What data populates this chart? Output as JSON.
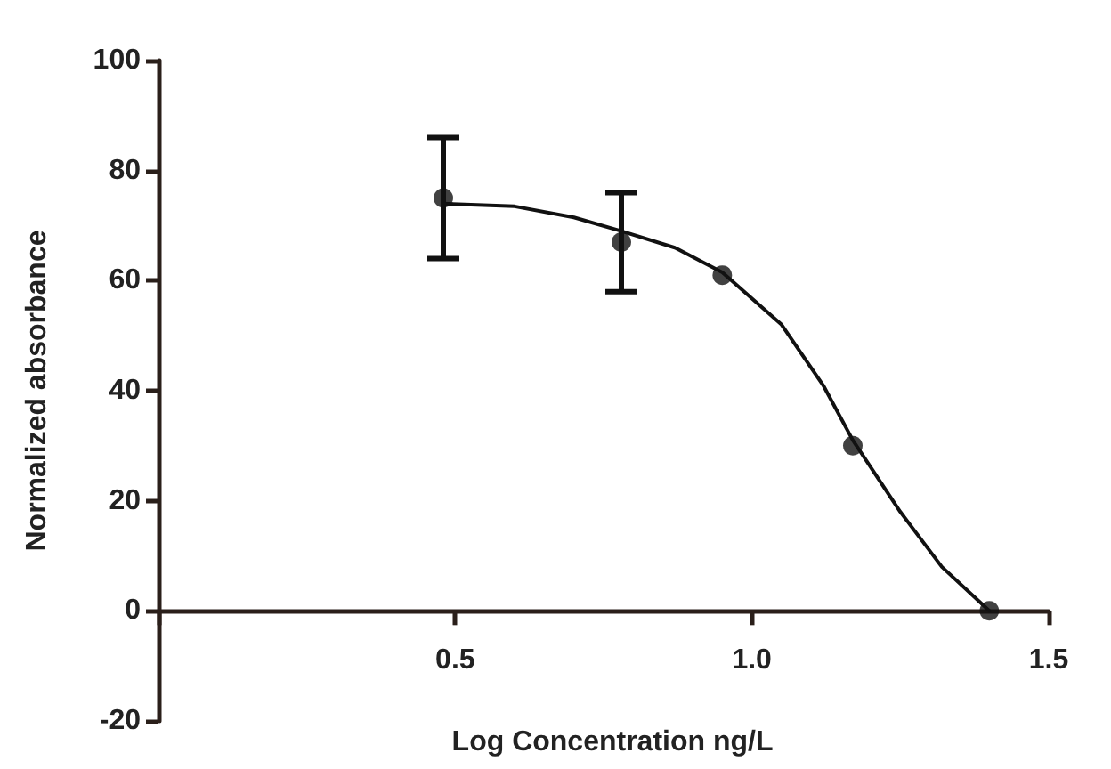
{
  "chart_data": {
    "type": "scatter",
    "xlabel": "Log Concentration ng/L",
    "ylabel": "Normalized absorbance",
    "xlim": [
      0,
      1.5
    ],
    "xticks": [
      {
        "value": 0.5,
        "label": "0.5"
      },
      {
        "value": 1,
        "label": "1.0"
      },
      {
        "value": 1.5,
        "label": "1.5"
      }
    ],
    "ylim": [
      -20,
      100
    ],
    "yticks": [
      -20,
      0,
      20,
      40,
      60,
      80,
      100
    ],
    "grid": false,
    "series": [
      {
        "color": "#111111",
        "marker": "circle",
        "x": [
          0.48,
          0.78,
          0.95,
          1.17,
          1.4
        ],
        "values": [
          75,
          67,
          61,
          30,
          0
        ],
        "errors": [
          11,
          9,
          null,
          null,
          null
        ]
      },
      {
        "type": "line",
        "color": "#111111",
        "marker": "none",
        "line_style": "solid",
        "x": [
          0.48,
          0.6,
          0.7,
          0.78,
          0.87,
          0.95,
          1.05,
          1.12,
          1.17,
          1.25,
          1.32,
          1.4
        ],
        "values": [
          74,
          73.5,
          71.5,
          69,
          66,
          61.5,
          52,
          41,
          31,
          18,
          8,
          0
        ]
      }
    ]
  }
}
